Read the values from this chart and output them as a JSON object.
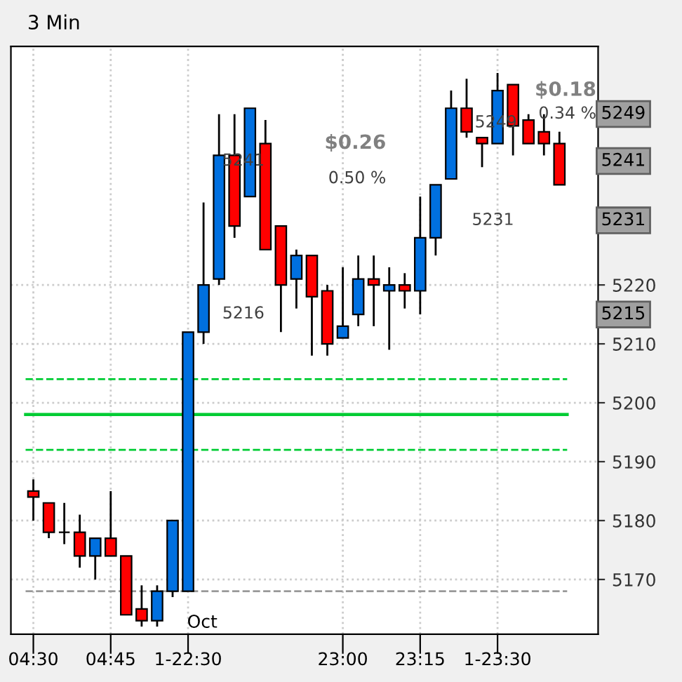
{
  "chart_data": {
    "type": "candlestick",
    "title": "3 Min",
    "categories": [
      "04:30",
      null,
      null,
      null,
      null,
      "04:45",
      null,
      null,
      null,
      null,
      "1-22:30",
      null,
      null,
      null,
      null,
      null,
      null,
      null,
      null,
      null,
      "23:00",
      null,
      null,
      null,
      null,
      "23:15",
      null,
      null,
      null,
      null,
      "1-23:30",
      null,
      null,
      null,
      null
    ],
    "ohlc": [
      [
        5185,
        5187,
        5180,
        5184
      ],
      [
        5183,
        5183,
        5177,
        5178
      ],
      [
        5178,
        5183,
        5176,
        5178
      ],
      [
        5178,
        5181,
        5172,
        5174
      ],
      [
        5174,
        5177,
        5170,
        5177
      ],
      [
        5177,
        5185,
        5174,
        5174
      ],
      [
        5174,
        5174,
        5164,
        5164
      ],
      [
        5165,
        5169,
        5162,
        5163
      ],
      [
        5163,
        5169,
        5162,
        5168
      ],
      [
        5168,
        5180,
        5167,
        5180
      ],
      [
        5168,
        5212,
        5168,
        5212
      ],
      [
        5212,
        5234,
        5210,
        5220
      ],
      [
        5221,
        5249,
        5220,
        5242
      ],
      [
        5242,
        5249,
        5228,
        5230
      ],
      [
        5235,
        5250,
        5235,
        5250
      ],
      [
        5244,
        5248,
        5226,
        5226
      ],
      [
        5230,
        5230,
        5212,
        5220
      ],
      [
        5221,
        5226,
        5216,
        5225
      ],
      [
        5225,
        5225,
        5208,
        5218
      ],
      [
        5219,
        5220,
        5208,
        5210
      ],
      [
        5211,
        5223,
        5211,
        5213
      ],
      [
        5215,
        5225,
        5213,
        5221
      ],
      [
        5221,
        5225,
        5213,
        5220
      ],
      [
        5219,
        5223,
        5209,
        5220
      ],
      [
        5220,
        5222,
        5216,
        5219
      ],
      [
        5219,
        5235,
        5215,
        5228
      ],
      [
        5228,
        5237,
        5225,
        5237
      ],
      [
        5238,
        5253,
        5238,
        5250
      ],
      [
        5250,
        5255,
        5245,
        5246
      ],
      [
        5245,
        5245,
        5240,
        5244
      ],
      [
        5244,
        5256,
        5244,
        5253
      ],
      [
        5254,
        5254,
        5242,
        5247
      ],
      [
        5248,
        5249,
        5244,
        5244
      ],
      [
        5246,
        5249,
        5242,
        5244
      ],
      [
        5244,
        5246,
        5237,
        5237
      ]
    ],
    "colors": [
      "#ff0000",
      "#ff0000",
      "#000000",
      "#ff0000",
      "#0070e0",
      "#ff0000",
      "#ff0000",
      "#ff0000",
      "#0070e0",
      "#0070e0",
      "#0070e0",
      "#0070e0",
      "#0070e0",
      "#ff0000",
      "#0070e0",
      "#ff0000",
      "#ff0000",
      "#0070e0",
      "#ff0000",
      "#ff0000",
      "#0070e0",
      "#0070e0",
      "#ff0000",
      "#0070e0",
      "#ff0000",
      "#0070e0",
      "#0070e0",
      "#0070e0",
      "#ff0000",
      "#ff0000",
      "#0070e0",
      "#ff0000",
      "#ff0000",
      "#ff0000",
      "#ff0000"
    ],
    "ylim": [
      5160.7,
      5260.5
    ],
    "yticks": [
      5170,
      5180,
      5190,
      5200,
      5210,
      5220
    ],
    "grid": true,
    "ref_lines": [
      {
        "axis": "y",
        "value": 5204,
        "color": "#00cc33",
        "line_style": "dashed"
      },
      {
        "axis": "y",
        "value": 5198,
        "color": "#00cc33",
        "line_style": "solid"
      },
      {
        "axis": "y",
        "value": 5192,
        "color": "#00cc33",
        "line_style": "dashed"
      },
      {
        "axis": "y",
        "value": 5168,
        "color": "#999999",
        "line_style": "dashed"
      }
    ],
    "annotations": [
      "$0.26",
      "0.50 %",
      "5241",
      "5216",
      "$0.18",
      "0.34 %",
      "5249",
      "5231",
      "5249",
      "5241",
      "5231",
      "5215",
      "Oct"
    ]
  }
}
